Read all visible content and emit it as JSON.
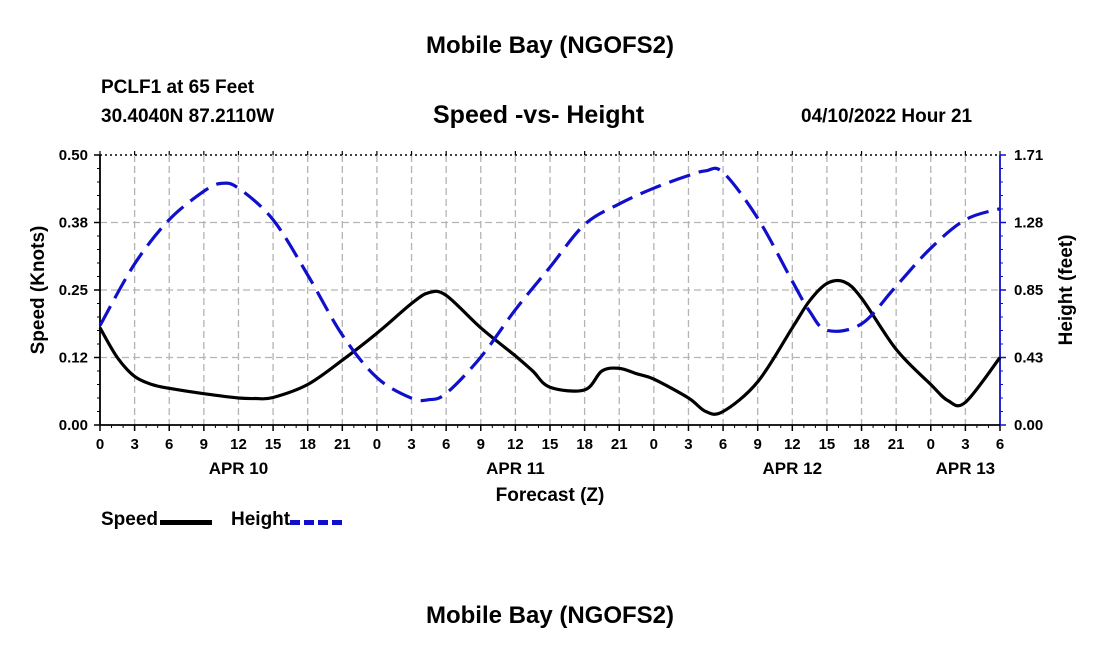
{
  "header": {
    "title": "Mobile Bay (NGOFS2)",
    "station": "PCLF1 at 65 Feet",
    "coords": "30.4040N  87.2110W",
    "subtitle": "Speed -vs- Height",
    "datetime": "04/10/2022 Hour 21",
    "footer_title": "Mobile Bay (NGOFS2)"
  },
  "legend": {
    "speed_label": "Speed",
    "height_label": "Height"
  },
  "colors": {
    "speed": "#000000",
    "height": "#1010cc",
    "grid": "#b4b4b4"
  },
  "chart_data": {
    "type": "line",
    "title": "Speed -vs- Height",
    "xlabel": "Forecast (Z)",
    "ylabel_left": "Speed (Knots)",
    "ylabel_right": "Height (feet)",
    "x_unit": "hours from Apr 10 00Z",
    "xlim": [
      0,
      78
    ],
    "ylim_left": [
      0,
      0.5
    ],
    "ylim_right": [
      0,
      1.71
    ],
    "x_ticks": [
      0,
      3,
      6,
      9,
      12,
      15,
      18,
      21,
      24,
      27,
      30,
      33,
      36,
      39,
      42,
      45,
      48,
      51,
      54,
      57,
      60,
      63,
      66,
      69,
      72,
      75,
      78
    ],
    "x_tick_labels": [
      "0",
      "3",
      "6",
      "9",
      "12",
      "15",
      "18",
      "21",
      "0",
      "3",
      "6",
      "9",
      "12",
      "15",
      "18",
      "21",
      "0",
      "3",
      "6",
      "9",
      "12",
      "15",
      "18",
      "21",
      "0",
      "3",
      "6"
    ],
    "date_labels": [
      {
        "x": 12,
        "label": "APR 10"
      },
      {
        "x": 36,
        "label": "APR 11"
      },
      {
        "x": 60,
        "label": "APR 12"
      },
      {
        "x": 75,
        "label": "APR 13"
      }
    ],
    "y_left_ticks": [
      0,
      0.125,
      0.25,
      0.375,
      0.5
    ],
    "y_left_tick_labels": [
      "0.00",
      "0.12",
      "0.25",
      "0.38",
      "0.50"
    ],
    "y_right_ticks": [
      0,
      0.4275,
      0.855,
      1.2825,
      1.71
    ],
    "y_right_tick_labels": [
      "0.00",
      "0.43",
      "0.85",
      "1.28",
      "1.71"
    ],
    "grid": true,
    "series": [
      {
        "name": "Speed",
        "axis": "left",
        "style": "solid",
        "x": [
          0,
          1.5,
          3,
          4.5,
          6,
          9,
          12,
          13.5,
          15,
          18,
          21,
          24,
          27,
          28.5,
          30,
          33,
          36,
          37.5,
          39,
          42,
          43.5,
          45,
          46.5,
          48,
          51,
          52.5,
          54,
          57,
          60,
          61.5,
          63,
          64.5,
          66,
          69,
          72,
          73.5,
          75,
          78
        ],
        "values": [
          0.18,
          0.125,
          0.09,
          0.075,
          0.068,
          0.058,
          0.05,
          0.049,
          0.051,
          0.075,
          0.12,
          0.17,
          0.225,
          0.245,
          0.24,
          0.18,
          0.128,
          0.1,
          0.07,
          0.065,
          0.1,
          0.105,
          0.095,
          0.085,
          0.05,
          0.025,
          0.025,
          0.08,
          0.18,
          0.23,
          0.262,
          0.265,
          0.235,
          0.14,
          0.075,
          0.045,
          0.042,
          0.125
        ]
      },
      {
        "name": "Height",
        "axis": "right",
        "style": "dashed",
        "x": [
          0,
          3,
          6,
          9,
          10.5,
          12,
          15,
          18,
          21,
          24,
          27,
          28.5,
          30,
          33,
          36,
          39,
          42,
          45,
          48,
          51,
          52.5,
          54,
          57,
          60,
          61.5,
          63,
          66,
          69,
          72,
          75,
          78
        ],
        "values": [
          0.63,
          1.02,
          1.3,
          1.48,
          1.53,
          1.5,
          1.3,
          0.95,
          0.57,
          0.3,
          0.17,
          0.16,
          0.2,
          0.43,
          0.73,
          1.0,
          1.27,
          1.4,
          1.5,
          1.58,
          1.61,
          1.6,
          1.31,
          0.91,
          0.72,
          0.6,
          0.64,
          0.88,
          1.12,
          1.3,
          1.37
        ]
      }
    ]
  }
}
